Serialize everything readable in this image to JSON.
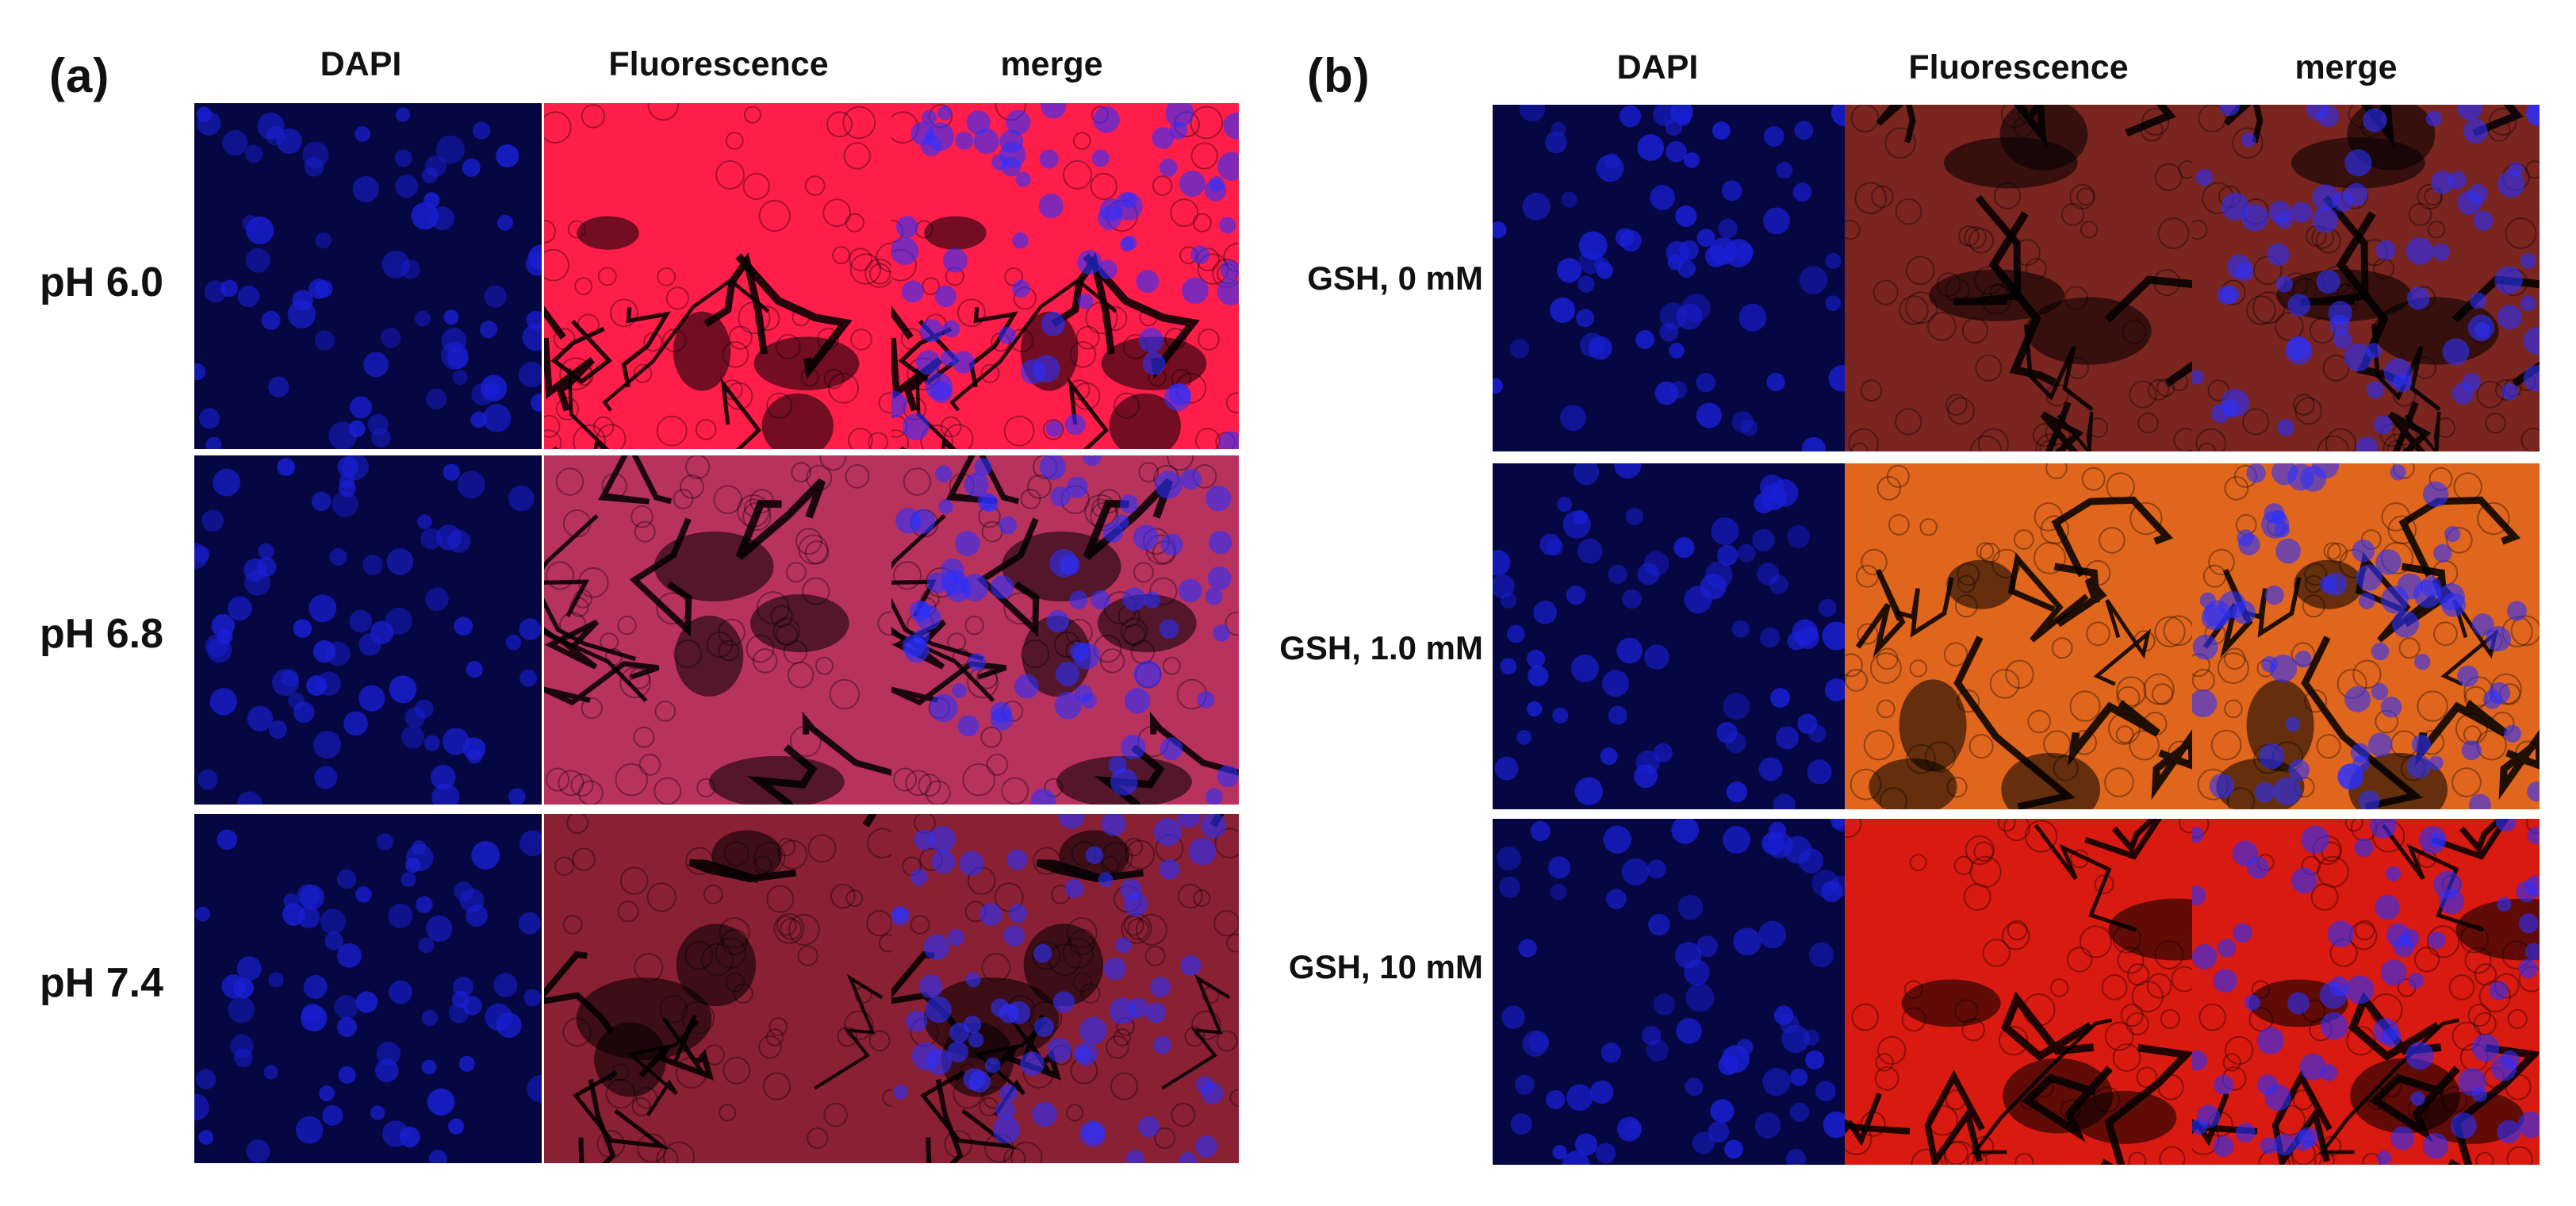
{
  "panel_a": {
    "letter": "(a)",
    "columns": [
      "DAPI",
      "Fluorescence",
      "merge"
    ],
    "rows": [
      {
        "label": "pH 6.0"
      },
      {
        "label": "pH 6.8"
      },
      {
        "label": "pH 7.4"
      }
    ]
  },
  "panel_b": {
    "letter": "(b)",
    "columns": [
      "DAPI",
      "Fluorescence",
      "merge"
    ],
    "rows": [
      {
        "label": "GSH, 0 mM"
      },
      {
        "label": "GSH, 1.0 mM"
      },
      {
        "label": "GSH, 10 mM"
      }
    ]
  },
  "colors": {
    "dapi": "#1a1fd6",
    "fluor_a": [
      "#ff1e4a",
      "#b8325e",
      "#8a2034"
    ],
    "fluor_b": [
      "#7a2520",
      "#e0661d",
      "#d81a10"
    ]
  }
}
